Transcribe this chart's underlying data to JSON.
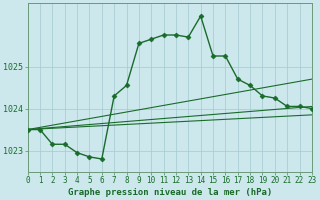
{
  "title": "Graphe pression niveau de la mer (hPa)",
  "background_color": "#cce8ed",
  "grid_color": "#aacdd5",
  "line_color": "#1a6b2a",
  "series_main": {
    "x": [
      0,
      1,
      2,
      3,
      4,
      5,
      6,
      7,
      8,
      9,
      10,
      11,
      12,
      13,
      14,
      15,
      16,
      17,
      18,
      19,
      20,
      21,
      22,
      23
    ],
    "y": [
      1023.5,
      1023.5,
      1023.15,
      1023.15,
      1022.95,
      1022.85,
      1022.8,
      1024.3,
      1024.55,
      1025.55,
      1025.65,
      1025.75,
      1025.75,
      1025.7,
      1026.2,
      1025.25,
      1025.25,
      1024.7,
      1024.55,
      1024.3,
      1024.25,
      1024.05,
      1024.05,
      1024.0
    ],
    "marker": "D",
    "markersize": 2.5,
    "linewidth": 1.0
  },
  "series_lines": [
    {
      "x0": 0,
      "y0": 1023.5,
      "x1": 23,
      "y1": 1024.7
    },
    {
      "x0": 0,
      "y0": 1023.5,
      "x1": 23,
      "y1": 1024.05
    },
    {
      "x0": 0,
      "y0": 1023.5,
      "x1": 23,
      "y1": 1023.85
    }
  ],
  "xlim": [
    0,
    23
  ],
  "ylim": [
    1022.5,
    1026.5
  ],
  "yticks": [
    1023,
    1024,
    1025
  ],
  "xticks": [
    0,
    1,
    2,
    3,
    4,
    5,
    6,
    7,
    8,
    9,
    10,
    11,
    12,
    13,
    14,
    15,
    16,
    17,
    18,
    19,
    20,
    21,
    22,
    23
  ],
  "tick_fontsize": 5.5,
  "title_fontsize": 6.5,
  "figsize": [
    3.2,
    2.0
  ],
  "dpi": 100
}
